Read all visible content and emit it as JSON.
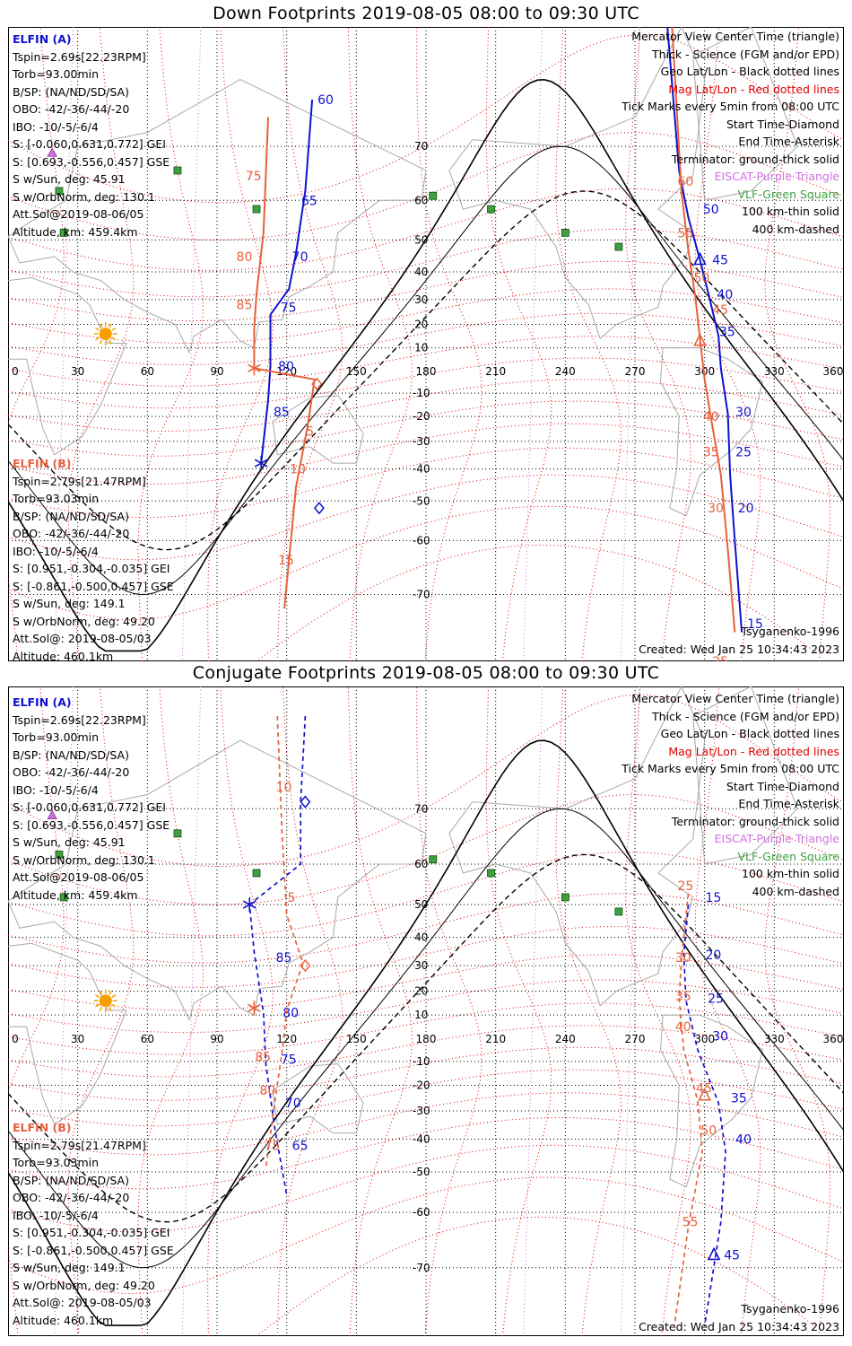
{
  "panels": [
    {
      "title": "Down Footprints 2019-08-05 08:00 to 09:30 UTC",
      "elfin_a": {
        "header": "ELFIN (A)",
        "lines": [
          "Tspin=2.69s[22.23RPM]",
          "Torb=93.00min",
          "B/SP: (NA/ND/SD/SA)",
          "OBO: -42/-36/-44/-20",
          "IBO: -10/-5/-6/4",
          "S: [-0.060,0.631,0.772] GEI",
          "S: [0.693,-0.556,0.457] GSE",
          "S w/Sun, deg: 45.91",
          "S w/OrbNorm, deg: 130.1",
          "Att.Sol@2019-08-06/05",
          "Altitude, km: 459.4km"
        ]
      },
      "elfin_b": {
        "header": "ELFIN (B)",
        "lines": [
          "Tspin=2.79s[21.47RPM]",
          "Torb=93.03min",
          "B/SP: (NA/ND/SD/SA)",
          "OBO: -42/-36/-44/-20",
          "IBO: -10/-5/-6/4",
          "S: [0.951,-0.304,-0.035] GEI",
          "S: [-0.861,-0.500,0.457] GSE",
          "S w/Sun, deg: 149.1",
          "S w/OrbNorm, deg: 49.20",
          "Att.Sol@: 2019-08-05/03",
          "Altitude: 460.1km"
        ]
      },
      "legend": [
        "Mercator View Center Time (triangle)",
        "Thick - Science (FGM and/or EPD)",
        "Geo Lat/Lon - Black dotted lines",
        "Mag Lat/Lon - Red dotted lines",
        "Tick Marks every 5min from 08:00 UTC",
        "Start Time-Diamond",
        "End Time-Asterisk",
        "Terminator: ground-thick solid",
        "EISCAT-Purple Triangle",
        "VLF-Green Square",
        "100 km-thin solid",
        "400 km-dashed"
      ],
      "model": "Tsyganenko-1996",
      "created": "Created: Wed Jan 25 10:34:43 2023"
    },
    {
      "title": "Conjugate Footprints 2019-08-05 08:00 to 09:30 UTC",
      "elfin_a": {
        "header": "ELFIN (A)",
        "lines": [
          "Tspin=2.69s[22.23RPM]",
          "Torb=93.00min",
          "B/SP: (NA/ND/SD/SA)",
          "OBO: -42/-36/-44/-20",
          "IBO: -10/-5/-6/4",
          "S: [-0.060,0.631,0.772] GEI",
          "S: [0.693,-0.556,0.457] GSE",
          "S w/Sun, deg: 45.91",
          "S w/OrbNorm, deg: 130.1",
          "Att.Sol@2019-08-06/05",
          "Altitude, km: 459.4km"
        ]
      },
      "elfin_b": {
        "header": "ELFIN (B)",
        "lines": [
          "Tspin=2.79s[21.47RPM]",
          "Torb=93.03min",
          "B/SP: (NA/ND/SD/SA)",
          "OBO: -42/-36/-44/-20",
          "IBO: -10/-5/-6/4",
          "S: [0.951,-0.304,-0.035] GEI",
          "S: [-0.861,-0.500,0.457] GSE",
          "S w/Sun, deg: 149.1",
          "S w/OrbNorm, deg: 49.20",
          "Att.Sol@: 2019-08-05/03",
          "Altitude: 460.1km"
        ]
      },
      "legend": [
        "Mercator View Center Time (triangle)",
        "Thick - Science (FGM and/or EPD)",
        "Geo Lat/Lon - Black dotted lines",
        "Mag Lat/Lon - Red dotted lines",
        "Tick Marks every 5min from 08:00 UTC",
        "Start Time-Diamond",
        "End Time-Asterisk",
        "Terminator: ground-thick solid",
        "EISCAT-Purple Triangle",
        "VLF-Green Square",
        "100 km-thin solid",
        "400 km-dashed"
      ],
      "model": "Tsyganenko-1996",
      "created": "Created: Wed Jan 25 10:34:43 2023"
    }
  ],
  "colors": {
    "elfin_a": "#1010d0",
    "elfin_b": "#e8603c",
    "mag_grid": "#e00000",
    "geo_grid": "#000000",
    "eiscat": "#d070e0",
    "vlf": "#40a040",
    "sun": "#f5a000"
  },
  "chart_data": [
    {
      "type": "map-track",
      "projection": "Mercator",
      "xlim": [
        0,
        360
      ],
      "ylim": [
        -78,
        82
      ],
      "lon_ticks": [
        0,
        30,
        60,
        90,
        120,
        150,
        180,
        210,
        240,
        270,
        300,
        330,
        360
      ],
      "lat_ticks": [
        70,
        60,
        50,
        40,
        30,
        20,
        10,
        -10,
        -20,
        -30,
        -40,
        -50,
        -60,
        -70
      ],
      "grid": true,
      "series": [
        {
          "name": "ELFIN (A)",
          "style": "solid",
          "points": [
            {
              "lon": 131,
              "lat": 76
            },
            {
              "lon": 128,
              "lat": 62
            },
            {
              "lon": 124,
              "lat": 46
            },
            {
              "lon": 121,
              "lat": 34
            },
            {
              "lon": 113,
              "lat": 24
            },
            {
              "lon": 113,
              "lat": 2
            },
            {
              "lon": 112,
              "lat": -13
            },
            {
              "lon": 109,
              "lat": -38
            }
          ],
          "tick_labels": [
            {
              "t": "60",
              "lon": 131,
              "lat": 76
            },
            {
              "t": "65",
              "lon": 124,
              "lat": 60
            },
            {
              "t": "70",
              "lon": 120,
              "lat": 45
            },
            {
              "t": "75",
              "lon": 115,
              "lat": 27
            },
            {
              "t": "80",
              "lon": 114,
              "lat": 2
            },
            {
              "t": "85",
              "lon": 112,
              "lat": -18
            }
          ],
          "start": {
            "lon": 134,
            "lat": -52
          },
          "end": {
            "lon": 109,
            "lat": -38
          }
        },
        {
          "name": "ELFIN (A)",
          "style": "solid",
          "points": [
            {
              "lon": 284,
              "lat": 82
            },
            {
              "lon": 289,
              "lat": 66
            },
            {
              "lon": 293,
              "lat": 56
            },
            {
              "lon": 298,
              "lat": 44
            },
            {
              "lon": 302,
              "lat": 31
            },
            {
              "lon": 306,
              "lat": 15
            },
            {
              "lon": 307,
              "lat": 1
            },
            {
              "lon": 310,
              "lat": -19
            },
            {
              "lon": 311,
              "lat": -42
            },
            {
              "lon": 313,
              "lat": -60
            },
            {
              "lon": 316,
              "lat": -75
            }
          ],
          "tick_labels": [
            {
              "t": "50",
              "lon": 297,
              "lat": 58
            },
            {
              "t": "45",
              "lon": 301,
              "lat": 44
            },
            {
              "t": "40",
              "lon": 303,
              "lat": 32
            },
            {
              "t": "35",
              "lon": 304,
              "lat": 17
            },
            {
              "t": "30",
              "lon": 311,
              "lat": -18
            },
            {
              "t": "25",
              "lon": 311,
              "lat": -34
            },
            {
              "t": "20",
              "lon": 312,
              "lat": -52
            },
            {
              "t": "15",
              "lon": 316,
              "lat": -74
            }
          ],
          "view_center": {
            "lon": 298,
            "lat": 44
          }
        },
        {
          "name": "ELFIN (B)",
          "style": "solid",
          "points": [
            {
              "lon": 112,
              "lat": 74
            },
            {
              "lon": 110,
              "lat": 52
            },
            {
              "lon": 107,
              "lat": 32
            },
            {
              "lon": 106,
              "lat": 18
            },
            {
              "lon": 106,
              "lat": 1
            },
            {
              "lon": 132,
              "lat": -4
            },
            {
              "lon": 129,
              "lat": -24
            },
            {
              "lon": 124,
              "lat": -46
            },
            {
              "lon": 119,
              "lat": -72
            }
          ],
          "tick_labels": [
            {
              "t": "75",
              "lon": 100,
              "lat": 65
            },
            {
              "t": "80",
              "lon": 96,
              "lat": 45
            },
            {
              "t": "85",
              "lon": 96,
              "lat": 28
            },
            {
              "t": "5",
              "lon": 126,
              "lat": -26
            },
            {
              "t": "10",
              "lon": 119,
              "lat": -40
            },
            {
              "t": "15",
              "lon": 114,
              "lat": -64
            }
          ],
          "start": {
            "lon": 133,
            "lat": -6
          },
          "end": {
            "lon": 106,
            "lat": 1
          }
        },
        {
          "name": "ELFIN (B)",
          "style": "solid",
          "points": [
            {
              "lon": 286,
              "lat": 82
            },
            {
              "lon": 290,
              "lat": 62
            },
            {
              "lon": 293,
              "lat": 47
            },
            {
              "lon": 296,
              "lat": 31
            },
            {
              "lon": 298,
              "lat": 14
            },
            {
              "lon": 300,
              "lat": -4
            },
            {
              "lon": 303,
              "lat": -22
            },
            {
              "lon": 307,
              "lat": -42
            },
            {
              "lon": 310,
              "lat": -62
            },
            {
              "lon": 313,
              "lat": -75
            }
          ],
          "tick_labels": [
            {
              "t": "60",
              "lon": 286,
              "lat": 64
            },
            {
              "t": "55",
              "lon": 286,
              "lat": 52
            },
            {
              "t": "50",
              "lon": 293,
              "lat": 38
            },
            {
              "t": "45",
              "lon": 301,
              "lat": 26
            },
            {
              "t": "40",
              "lon": 297,
              "lat": -20
            },
            {
              "t": "35",
              "lon": 297,
              "lat": -34
            },
            {
              "t": "30",
              "lon": 299,
              "lat": -52
            },
            {
              "t": "25",
              "lon": 301,
              "lat": -78
            }
          ],
          "view_center": {
            "lon": 298,
            "lat": 13
          }
        }
      ],
      "vlf_stations": [
        {
          "lon": 73,
          "lat": 66
        },
        {
          "lon": 22,
          "lat": 62
        },
        {
          "lon": 24,
          "lat": 52
        },
        {
          "lon": 107,
          "lat": 58
        },
        {
          "lon": 183,
          "lat": 61
        },
        {
          "lon": 208,
          "lat": 58
        },
        {
          "lon": 240,
          "lat": 52
        },
        {
          "lon": 263,
          "lat": 48
        }
      ],
      "eiscat": [
        {
          "lon": 19,
          "lat": 69
        }
      ],
      "sun": {
        "lon": 42,
        "lat": 16
      }
    },
    {
      "type": "map-track",
      "projection": "Mercator",
      "xlim": [
        0,
        360
      ],
      "ylim": [
        -78,
        82
      ],
      "lon_ticks": [
        0,
        30,
        60,
        90,
        120,
        150,
        180,
        210,
        240,
        270,
        300,
        330,
        360
      ],
      "lat_ticks": [
        70,
        60,
        50,
        40,
        30,
        20,
        10,
        -10,
        -20,
        -30,
        -40,
        -50,
        -60,
        -70
      ],
      "grid": true,
      "series": [
        {
          "name": "ELFIN (A)",
          "style": "dashed",
          "points": [
            {
              "lon": 128,
              "lat": 80
            },
            {
              "lon": 126,
              "lat": 71
            },
            {
              "lon": 126,
              "lat": 60
            },
            {
              "lon": 104,
              "lat": 50
            },
            {
              "lon": 106,
              "lat": 35
            },
            {
              "lon": 110,
              "lat": 11
            },
            {
              "lon": 111,
              "lat": -11
            },
            {
              "lon": 115,
              "lat": -37
            },
            {
              "lon": 120,
              "lat": -56
            }
          ],
          "tick_labels": [
            {
              "t": "85",
              "lon": 113,
              "lat": 33
            },
            {
              "t": "80",
              "lon": 116,
              "lat": 11
            },
            {
              "t": "75",
              "lon": 115,
              "lat": -9
            },
            {
              "t": "70",
              "lon": 117,
              "lat": -27
            },
            {
              "t": "65",
              "lon": 120,
              "lat": -42
            }
          ],
          "start": {
            "lon": 128,
            "lat": 71
          },
          "end": {
            "lon": 104,
            "lat": 50
          }
        },
        {
          "name": "ELFIN (A)",
          "style": "dashed",
          "points": [
            {
              "lon": 293,
              "lat": 50
            },
            {
              "lon": 291,
              "lat": 34
            },
            {
              "lon": 292,
              "lat": 16
            },
            {
              "lon": 297,
              "lat": -5
            },
            {
              "lon": 306,
              "lat": -27
            },
            {
              "lon": 309,
              "lat": -44
            },
            {
              "lon": 307,
              "lat": -62
            },
            {
              "lon": 300,
              "lat": -77
            }
          ],
          "tick_labels": [
            {
              "t": "15",
              "lon": 298,
              "lat": 52
            },
            {
              "t": "20",
              "lon": 298,
              "lat": 34
            },
            {
              "t": "25",
              "lon": 299,
              "lat": 17
            },
            {
              "t": "30",
              "lon": 301,
              "lat": 1
            },
            {
              "t": "35",
              "lon": 309,
              "lat": -25
            },
            {
              "t": "40",
              "lon": 311,
              "lat": -40
            },
            {
              "t": "45",
              "lon": 306,
              "lat": -68
            }
          ],
          "view_center": {
            "lon": 304,
            "lat": -68
          }
        },
        {
          "name": "ELFIN (B)",
          "style": "dashed",
          "points": [
            {
              "lon": 116,
              "lat": 80
            },
            {
              "lon": 118,
              "lat": 66
            },
            {
              "lon": 120,
              "lat": 47
            },
            {
              "lon": 127,
              "lat": 31
            },
            {
              "lon": 120,
              "lat": 12
            },
            {
              "lon": 118,
              "lat": -6
            },
            {
              "lon": 115,
              "lat": -26
            },
            {
              "lon": 111,
              "lat": -49
            }
          ],
          "tick_labels": [
            {
              "t": "10",
              "lon": 113,
              "lat": 73
            },
            {
              "t": "5",
              "lon": 118,
              "lat": 52
            },
            {
              "t": "85",
              "lon": 104,
              "lat": -8
            },
            {
              "t": "80",
              "lon": 106,
              "lat": -22
            },
            {
              "t": "75",
              "lon": 108,
              "lat": -42
            }
          ],
          "start": {
            "lon": 128,
            "lat": 30
          },
          "end": {
            "lon": 106,
            "lat": 13
          }
        },
        {
          "name": "ELFIN (B)",
          "style": "dashed",
          "points": [
            {
              "lon": 293,
              "lat": 53
            },
            {
              "lon": 290,
              "lat": 32
            },
            {
              "lon": 289,
              "lat": 17
            },
            {
              "lon": 291,
              "lat": -5
            },
            {
              "lon": 297,
              "lat": -26
            },
            {
              "lon": 299,
              "lat": -44
            },
            {
              "lon": 293,
              "lat": -63
            },
            {
              "lon": 287,
              "lat": -77
            }
          ],
          "tick_labels": [
            {
              "t": "25",
              "lon": 286,
              "lat": 55
            },
            {
              "t": "30",
              "lon": 285,
              "lat": 33
            },
            {
              "t": "35",
              "lon": 285,
              "lat": 18
            },
            {
              "t": "40",
              "lon": 285,
              "lat": 5
            },
            {
              "t": "45",
              "lon": 294,
              "lat": -21
            },
            {
              "t": "50",
              "lon": 296,
              "lat": -37
            },
            {
              "t": "55",
              "lon": 288,
              "lat": -62
            }
          ],
          "view_center": {
            "lon": 300,
            "lat": -24
          }
        }
      ],
      "vlf_stations": [
        {
          "lon": 73,
          "lat": 66
        },
        {
          "lon": 22,
          "lat": 62
        },
        {
          "lon": 24,
          "lat": 52
        },
        {
          "lon": 107,
          "lat": 58
        },
        {
          "lon": 183,
          "lat": 61
        },
        {
          "lon": 208,
          "lat": 58
        },
        {
          "lon": 240,
          "lat": 52
        },
        {
          "lon": 263,
          "lat": 48
        }
      ],
      "eiscat": [
        {
          "lon": 19,
          "lat": 69
        }
      ],
      "sun": {
        "lon": 42,
        "lat": 16
      }
    }
  ]
}
